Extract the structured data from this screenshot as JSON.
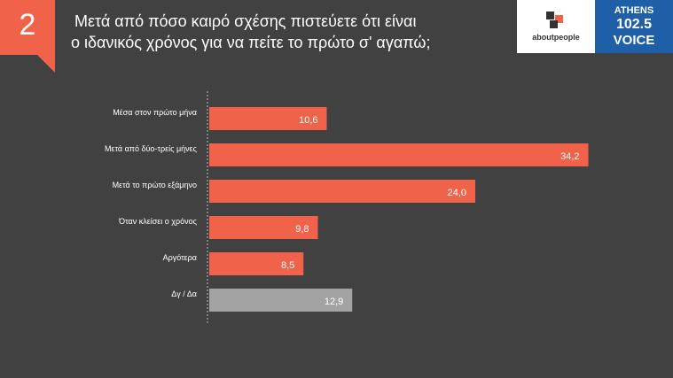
{
  "slide_number": "2",
  "title_lines": [
    "Μετά από πόσο καιρό σχέσης πιστεύετε ότι είναι",
    "ο ιδανικός χρόνος για να πείτε το πρώτο σ' αγαπώ;"
  ],
  "logos": {
    "aboutpeople": "aboutpeople",
    "athens_line1": "ATHENS",
    "athens_line2": "102.5",
    "athens_line3": "VOICE"
  },
  "colors": {
    "background": "#414141",
    "accent": "#f0634a",
    "bar_primary": "#f0634a",
    "bar_secondary": "#a3a3a3",
    "athens_blue": "#1e5fa8"
  },
  "chart_data": {
    "type": "bar",
    "orientation": "horizontal",
    "categories": [
      "Μέσα στον πρώτο μήνα",
      "Μετά από δύο-τρείς μήνες",
      "Μετά το πρώτο εξάμηνο",
      "Όταν κλείσει ο χρόνος",
      "Αργότερα",
      "Δγ / Δα"
    ],
    "values": [
      10.6,
      34.2,
      24.0,
      9.8,
      8.5,
      12.9
    ],
    "value_labels": [
      "10,6",
      "34,2",
      "24,0",
      "9,8",
      "8,5",
      "12,9"
    ],
    "highlight_last_gray": true,
    "xlim": [
      0,
      36
    ],
    "grid": false,
    "legend": "none"
  }
}
